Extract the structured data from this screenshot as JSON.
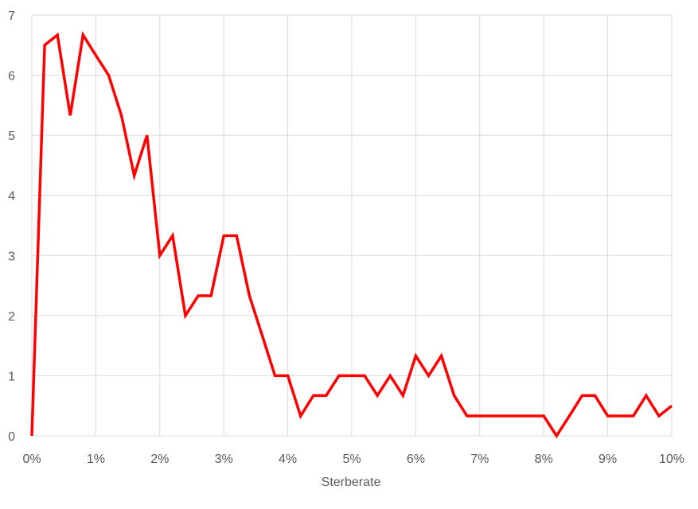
{
  "chart_data": {
    "type": "line",
    "title": "",
    "xlabel": "Sterberate",
    "ylabel": "",
    "xlim": [
      0,
      0.1
    ],
    "ylim": [
      0,
      7
    ],
    "grid": true,
    "legend": "none",
    "x_ticks": [
      {
        "value": 0.0,
        "label": "0%"
      },
      {
        "value": 0.01,
        "label": "1%"
      },
      {
        "value": 0.02,
        "label": "2%"
      },
      {
        "value": 0.03,
        "label": "3%"
      },
      {
        "value": 0.04,
        "label": "4%"
      },
      {
        "value": 0.05,
        "label": "5%"
      },
      {
        "value": 0.06,
        "label": "6%"
      },
      {
        "value": 0.07,
        "label": "7%"
      },
      {
        "value": 0.08,
        "label": "8%"
      },
      {
        "value": 0.09,
        "label": "9%"
      },
      {
        "value": 0.1,
        "label": "10%"
      }
    ],
    "y_ticks": [
      {
        "value": 0,
        "label": "0"
      },
      {
        "value": 1,
        "label": "1"
      },
      {
        "value": 2,
        "label": "2"
      },
      {
        "value": 3,
        "label": "3"
      },
      {
        "value": 4,
        "label": "4"
      },
      {
        "value": 5,
        "label": "5"
      },
      {
        "value": 6,
        "label": "6"
      },
      {
        "value": 7,
        "label": "7"
      }
    ],
    "series": [
      {
        "color": "#ff0000",
        "x": [
          0.0,
          0.002,
          0.004,
          0.006,
          0.008,
          0.01,
          0.012,
          0.014,
          0.016,
          0.018,
          0.02,
          0.022,
          0.024,
          0.026,
          0.028,
          0.03,
          0.032,
          0.034,
          0.036,
          0.038,
          0.04,
          0.042,
          0.044,
          0.046,
          0.048,
          0.05,
          0.052,
          0.054,
          0.056,
          0.058,
          0.06,
          0.062,
          0.064,
          0.066,
          0.068,
          0.07,
          0.072,
          0.074,
          0.076,
          0.078,
          0.08,
          0.082,
          0.084,
          0.086,
          0.088,
          0.09,
          0.092,
          0.094,
          0.096,
          0.098,
          0.1
        ],
        "values": [
          0,
          6.5,
          6.67,
          5.33,
          6.67,
          6.33,
          6.0,
          5.33,
          4.33,
          5.0,
          3.0,
          3.33,
          2.0,
          2.33,
          2.33,
          3.33,
          3.33,
          2.33,
          1.67,
          1.0,
          1.0,
          0.33,
          0.67,
          0.67,
          1.0,
          1.0,
          1.0,
          0.67,
          1.0,
          0.67,
          1.33,
          1.0,
          1.33,
          0.67,
          0.33,
          0.33,
          0.33,
          0.33,
          0.33,
          0.33,
          0.33,
          0,
          0.33,
          0.67,
          0.67,
          0.33,
          0.33,
          0.33,
          0.67,
          0.33,
          0.5
        ]
      }
    ]
  }
}
